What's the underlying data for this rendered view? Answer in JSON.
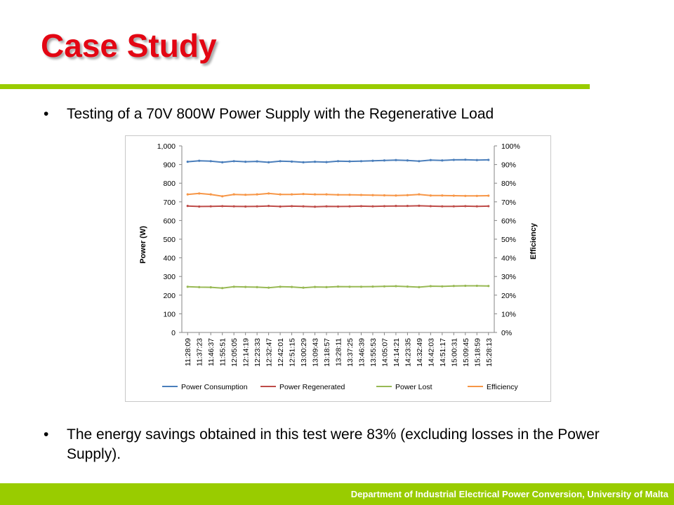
{
  "slide": {
    "title": "Case Study",
    "bullets": [
      "Testing of a 70V 800W Power Supply with the Regenerative Load",
      "The energy savings obtained in this test were 83% (excluding losses in the Power Supply)."
    ],
    "bullet_symbol": "•",
    "footer": "Department of Industrial Electrical Power Conversion, University of Malta",
    "colors": {
      "title": "#e30613",
      "accent": "#99cc00"
    }
  },
  "chart_data": {
    "type": "line",
    "title": "",
    "xlabel": "",
    "ylabel": "Power (W)",
    "y2label": "Efficiency",
    "ylim": [
      0,
      1000
    ],
    "y2lim": [
      0,
      100
    ],
    "yticks": [
      "0",
      "100",
      "200",
      "300",
      "400",
      "500",
      "600",
      "700",
      "800",
      "900",
      "1,000"
    ],
    "y2ticks": [
      "0%",
      "10%",
      "20%",
      "30%",
      "40%",
      "50%",
      "60%",
      "70%",
      "80%",
      "90%",
      "100%"
    ],
    "categories": [
      "11:28:09",
      "11:37:23",
      "11:46:37",
      "11:55:51",
      "12:05:05",
      "12:14:19",
      "12:23:33",
      "12:32:47",
      "12:42:01",
      "12:51:15",
      "13:00:29",
      "13:09:43",
      "13:18:57",
      "13:28:11",
      "13:37:25",
      "13:46:39",
      "13:55:53",
      "14:05:07",
      "14:14:21",
      "14:23:35",
      "14:32:49",
      "14:42:03",
      "14:51:17",
      "15:00:31",
      "15:09:45",
      "15:18:59",
      "15:28:13"
    ],
    "grid": false,
    "legend": "bottom",
    "series": [
      {
        "name": "Power Consumption",
        "axis": "left",
        "color": "#4a7ebb",
        "values": [
          915,
          920,
          918,
          912,
          918,
          915,
          917,
          912,
          918,
          916,
          912,
          915,
          913,
          918,
          917,
          918,
          920,
          922,
          924,
          922,
          918,
          924,
          922,
          925,
          926,
          924,
          925
        ]
      },
      {
        "name": "Power Regenerated",
        "axis": "left",
        "color": "#be4b48",
        "values": [
          678,
          675,
          676,
          677,
          676,
          675,
          676,
          678,
          675,
          677,
          676,
          674,
          676,
          675,
          676,
          677,
          676,
          677,
          678,
          678,
          679,
          677,
          676,
          676,
          677,
          676,
          677
        ]
      },
      {
        "name": "Power Lost",
        "axis": "left",
        "color": "#98b954",
        "values": [
          245,
          243,
          242,
          238,
          245,
          244,
          243,
          240,
          245,
          244,
          240,
          244,
          243,
          246,
          245,
          245,
          246,
          247,
          248,
          246,
          243,
          248,
          247,
          249,
          250,
          250,
          249
        ]
      },
      {
        "name": "Efficiency",
        "axis": "right",
        "color": "#f79646",
        "values": [
          74,
          74.5,
          74,
          73,
          74,
          73.8,
          74,
          74.5,
          74,
          74,
          74.2,
          74,
          74,
          73.8,
          73.8,
          73.7,
          73.6,
          73.5,
          73.4,
          73.6,
          74,
          73.4,
          73.4,
          73.3,
          73.2,
          73.2,
          73.3
        ]
      }
    ]
  }
}
